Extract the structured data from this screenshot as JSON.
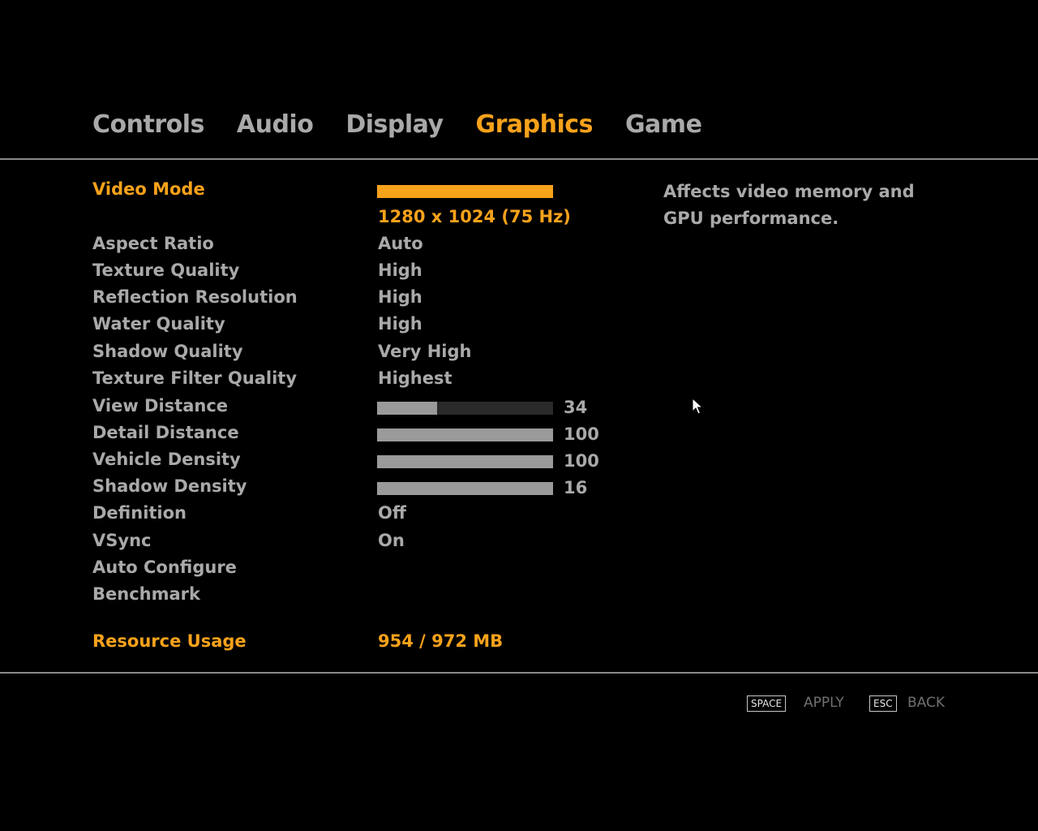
{
  "tabs": [
    {
      "label": "Controls",
      "active": false
    },
    {
      "label": "Audio",
      "active": false
    },
    {
      "label": "Display",
      "active": false
    },
    {
      "label": "Graphics",
      "active": true
    },
    {
      "label": "Game",
      "active": false
    }
  ],
  "settings": {
    "video_mode": {
      "label": "Video Mode",
      "value": "1280 x 1024 (75 Hz)"
    },
    "aspect_ratio": {
      "label": "Aspect Ratio",
      "value": "Auto"
    },
    "texture_quality": {
      "label": "Texture Quality",
      "value": "High"
    },
    "reflection_resolution": {
      "label": "Reflection Resolution",
      "value": "High"
    },
    "water_quality": {
      "label": "Water Quality",
      "value": "High"
    },
    "shadow_quality": {
      "label": "Shadow Quality",
      "value": "Very High"
    },
    "texture_filter_quality": {
      "label": "Texture Filter Quality",
      "value": "Highest"
    },
    "view_distance": {
      "label": "View Distance",
      "value": "34",
      "level": 0.34
    },
    "detail_distance": {
      "label": "Detail Distance",
      "value": "100",
      "level": 1.0
    },
    "vehicle_density": {
      "label": "Vehicle Density",
      "value": "100",
      "level": 1.0
    },
    "shadow_density": {
      "label": "Shadow Density",
      "value": "16",
      "level": 1.0
    },
    "definition": {
      "label": "Definition",
      "value": "Off"
    },
    "vsync": {
      "label": "VSync",
      "value": "On"
    },
    "auto_configure": {
      "label": "Auto Configure"
    },
    "benchmark": {
      "label": "Benchmark"
    },
    "resource_usage": {
      "label": "Resource Usage",
      "value": "954 / 972 MB"
    }
  },
  "description": "Affects video memory and GPU performance.",
  "footer": {
    "apply_key": "SPACE",
    "apply_label": "APPLY",
    "back_key": "ESC",
    "back_label": "BACK"
  },
  "colors": {
    "accent": "#f7a21b",
    "text": "#a9a9a9",
    "background": "#000000"
  }
}
